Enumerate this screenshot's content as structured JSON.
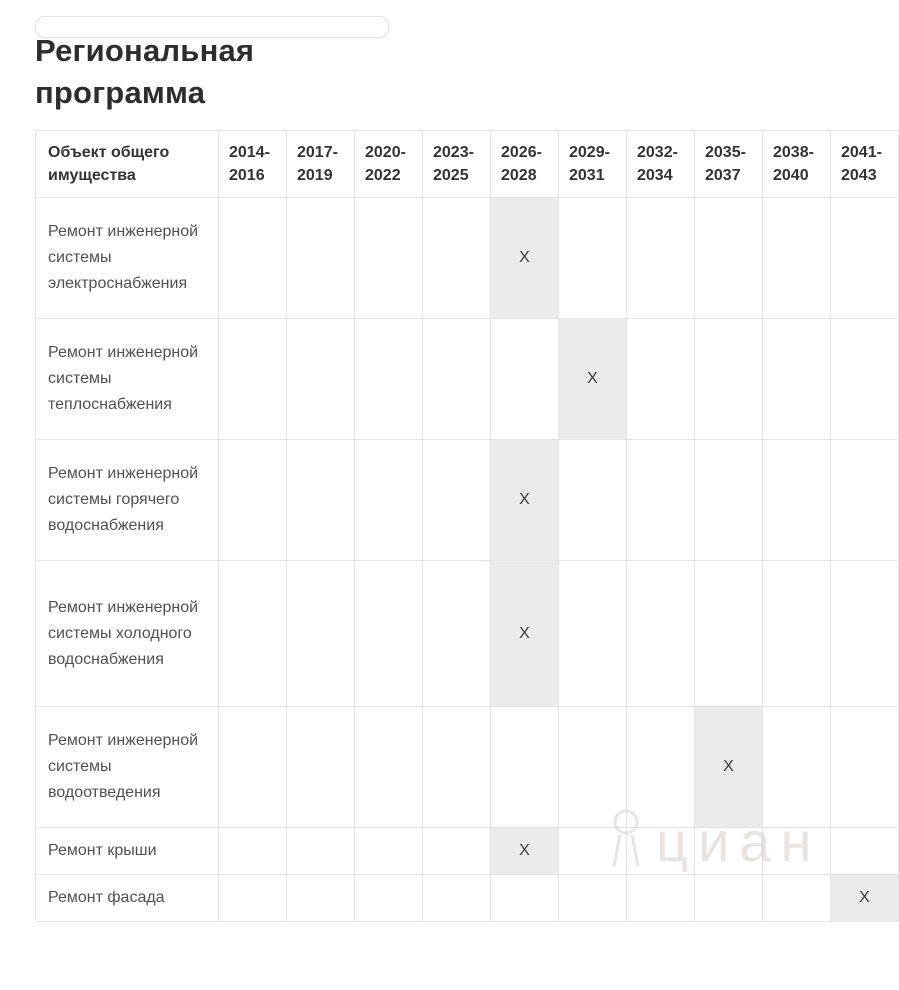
{
  "page": {
    "title": "Региональная программа"
  },
  "table": {
    "header": {
      "object_column": "Объект общего имущества",
      "periods": [
        "2014-2016",
        "2017-2019",
        "2020-2022",
        "2023-2025",
        "2026-2028",
        "2029-2031",
        "2032-2034",
        "2035-2037",
        "2038-2040",
        "2041-2043"
      ]
    },
    "mark_symbol": "X",
    "rows": [
      {
        "label": "Ремонт инженерной системы электроснабжения",
        "mark": "X",
        "marked_period": "2026-2028",
        "marked_index": 4
      },
      {
        "label": "Ремонт инженерной системы теплоснабжения",
        "mark": "X",
        "marked_period": "2029-2031",
        "marked_index": 5
      },
      {
        "label": "Ремонт инженерной системы горячего водоснабжения",
        "mark": "X",
        "marked_period": "2026-2028",
        "marked_index": 4
      },
      {
        "label": "Ремонт инженерной системы холодного водоснабжения",
        "mark": "X",
        "marked_period": "2026-2028",
        "marked_index": 4
      },
      {
        "label": "Ремонт инженерной системы водоотведения",
        "mark": "X",
        "marked_period": "2035-2037",
        "marked_index": 7
      },
      {
        "label": "Ремонт крыши",
        "mark": "X",
        "marked_period": "2026-2028",
        "marked_index": 4
      },
      {
        "label": "Ремонт фасада",
        "mark": "X",
        "marked_period": "2041-2043",
        "marked_index": 9
      }
    ]
  },
  "watermark": {
    "text": "циан"
  },
  "colors": {
    "highlight_cell": "#e9ece9",
    "border": "#e3e5e3",
    "title_text": "#2d2d2d",
    "header_text": "#333333",
    "body_text": "#515151",
    "mark_text": "#3a3a3a"
  }
}
